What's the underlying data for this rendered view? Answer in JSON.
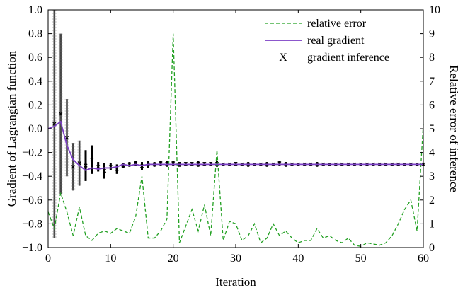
{
  "chart_data": {
    "type": "line",
    "title": "",
    "xlabel": "Iteration",
    "ylabel_left": "Gradient of Lagrangian function",
    "ylabel_right": "Relative error of inference",
    "xlim": [
      0,
      60
    ],
    "ylim_left": [
      -1.0,
      1.0
    ],
    "ylim_right": [
      0,
      10
    ],
    "x_ticks": [
      0,
      10,
      20,
      30,
      40,
      50,
      60
    ],
    "x_tick_labels": [
      "0",
      "10",
      "20",
      "30",
      "40",
      "50",
      "60"
    ],
    "y_left_ticks": [
      -1.0,
      -0.8,
      -0.6,
      -0.4,
      -0.2,
      0.0,
      0.2,
      0.4,
      0.6,
      0.8,
      1.0
    ],
    "y_left_tick_labels": [
      "−1.0",
      "−0.8",
      "−0.6",
      "−0.4",
      "−0.2",
      "0.0",
      "0.2",
      "0.4",
      "0.6",
      "0.8",
      "1.0"
    ],
    "y_right_ticks": [
      0,
      1,
      2,
      3,
      4,
      5,
      6,
      7,
      8,
      9,
      10
    ],
    "y_right_tick_labels": [
      "0",
      "1",
      "2",
      "3",
      "4",
      "5",
      "6",
      "7",
      "8",
      "9",
      "10"
    ],
    "grid": false,
    "legend_position": "top-right",
    "legend": [
      {
        "label": "relative error",
        "style": "dashed-line",
        "color": "#22a022"
      },
      {
        "label": "real gradient",
        "style": "line",
        "color": "#7b3fc4"
      },
      {
        "label": "gradient inference",
        "style": "marker",
        "marker": "X",
        "color": "#000000"
      }
    ],
    "series": [
      {
        "name": "real gradient",
        "axis": "left",
        "color": "#7b3fc4",
        "x": [
          0,
          1,
          2,
          3,
          4,
          5,
          6,
          7,
          8,
          9,
          10,
          11,
          12,
          13,
          14,
          15,
          16,
          17,
          18,
          19,
          20,
          21,
          22,
          23,
          24,
          25,
          26,
          27,
          28,
          29,
          30,
          32,
          34,
          36,
          38,
          40,
          42,
          44,
          46,
          48,
          50,
          52,
          54,
          56,
          58,
          60
        ],
        "y": [
          0.0,
          0.02,
          0.06,
          -0.14,
          -0.26,
          -0.31,
          -0.35,
          -0.33,
          -0.34,
          -0.33,
          -0.33,
          -0.32,
          -0.3,
          -0.31,
          -0.3,
          -0.31,
          -0.3,
          -0.3,
          -0.3,
          -0.3,
          -0.3,
          -0.3,
          -0.3,
          -0.3,
          -0.3,
          -0.3,
          -0.3,
          -0.3,
          -0.3,
          -0.3,
          -0.3,
          -0.3,
          -0.3,
          -0.3,
          -0.3,
          -0.3,
          -0.3,
          -0.3,
          -0.3,
          -0.3,
          -0.3,
          -0.3,
          -0.3,
          -0.3,
          -0.3,
          -0.3
        ]
      },
      {
        "name": "relative error",
        "axis": "right",
        "color": "#22a022",
        "x": [
          0,
          1,
          2,
          3,
          4,
          5,
          6,
          7,
          8,
          9,
          10,
          11,
          12,
          13,
          14,
          15,
          16,
          17,
          18,
          19,
          20,
          21,
          22,
          23,
          24,
          25,
          26,
          27,
          28,
          29,
          30,
          31,
          32,
          33,
          34,
          35,
          36,
          37,
          38,
          39,
          40,
          41,
          42,
          43,
          44,
          45,
          46,
          47,
          48,
          49,
          50,
          51,
          52,
          53,
          54,
          55,
          56,
          57,
          58,
          59,
          60
        ],
        "y": [
          1.5,
          0.8,
          2.3,
          1.5,
          0.5,
          1.7,
          0.5,
          0.3,
          0.6,
          0.7,
          0.6,
          0.8,
          0.7,
          0.6,
          1.3,
          3.0,
          0.4,
          0.4,
          0.7,
          1.2,
          9.0,
          0.2,
          0.9,
          1.6,
          0.7,
          1.8,
          0.5,
          4.1,
          0.3,
          1.1,
          1.0,
          0.3,
          0.5,
          1.0,
          0.2,
          0.4,
          1.0,
          0.5,
          0.7,
          0.4,
          0.2,
          0.3,
          0.3,
          0.8,
          0.4,
          0.5,
          0.3,
          0.2,
          0.4,
          0.1,
          0.05,
          0.2,
          0.15,
          0.1,
          0.2,
          0.5,
          1.0,
          1.6,
          2.0,
          0.7,
          5.2
        ]
      },
      {
        "name": "gradient inference",
        "axis": "left",
        "color": "#000000",
        "x": [
          1,
          2,
          3,
          4,
          5,
          6,
          7,
          8,
          9,
          10,
          11,
          12,
          13,
          14,
          15,
          16,
          17,
          18,
          19,
          20,
          21,
          22,
          23,
          24,
          25,
          26,
          27,
          28,
          29,
          30,
          31,
          32,
          33,
          34,
          35,
          36,
          37,
          38,
          39,
          40,
          41,
          42,
          43,
          44,
          45,
          46,
          47,
          48,
          49,
          50,
          51,
          52,
          53,
          54,
          55,
          56,
          57,
          58,
          59,
          60
        ],
        "y_low": [
          -0.92,
          -0.55,
          -0.4,
          -0.52,
          -0.48,
          -0.44,
          -0.38,
          -0.36,
          -0.42,
          -0.35,
          -0.38,
          -0.33,
          -0.32,
          -0.31,
          -0.35,
          -0.33,
          -0.32,
          -0.31,
          -0.32,
          -0.31,
          -0.32,
          -0.31,
          -0.31,
          -0.32,
          -0.31,
          -0.31,
          -0.32,
          -0.31,
          -0.31,
          -0.31,
          -0.31,
          -0.32,
          -0.31,
          -0.31,
          -0.32,
          -0.31,
          -0.31,
          -0.32,
          -0.31,
          -0.31,
          -0.31,
          -0.31,
          -0.32,
          -0.31,
          -0.31,
          -0.31,
          -0.31,
          -0.31,
          -0.31,
          -0.31,
          -0.31,
          -0.31,
          -0.31,
          -0.31,
          -0.31,
          -0.31,
          -0.31,
          -0.31,
          -0.31,
          -0.31
        ],
        "y_high": [
          1.0,
          0.8,
          0.25,
          -0.12,
          -0.1,
          -0.18,
          -0.14,
          -0.28,
          -0.29,
          -0.29,
          -0.3,
          -0.29,
          -0.28,
          -0.27,
          -0.28,
          -0.27,
          -0.28,
          -0.27,
          -0.27,
          -0.27,
          -0.28,
          -0.28,
          -0.28,
          -0.27,
          -0.28,
          -0.28,
          -0.27,
          -0.29,
          -0.29,
          -0.28,
          -0.29,
          -0.28,
          -0.29,
          -0.29,
          -0.28,
          -0.29,
          -0.27,
          -0.28,
          -0.29,
          -0.29,
          -0.29,
          -0.29,
          -0.28,
          -0.29,
          -0.29,
          -0.29,
          -0.29,
          -0.29,
          -0.29,
          -0.29,
          -0.29,
          -0.29,
          -0.29,
          -0.29,
          -0.29,
          -0.29,
          -0.29,
          -0.29,
          -0.29,
          -0.29
        ]
      }
    ]
  }
}
